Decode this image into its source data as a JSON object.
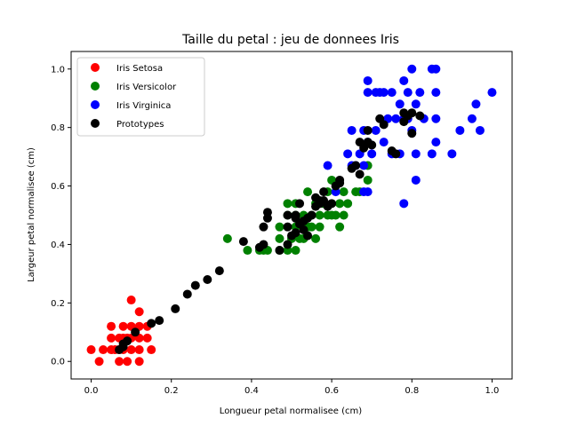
{
  "chart_data": {
    "type": "scatter",
    "title": "Taille du petal : jeu de donnees Iris",
    "xlabel": "Longueur petal  normalisee (cm)",
    "ylabel": "Largeur petal normalisee (cm)",
    "xlim": [
      -0.05,
      1.05
    ],
    "ylim": [
      -0.06,
      1.06
    ],
    "xticks": [
      "0.0",
      "0.2",
      "0.4",
      "0.6",
      "0.8",
      "1.0"
    ],
    "yticks": [
      "0.0",
      "0.2",
      "0.4",
      "0.6",
      "0.8",
      "1.0"
    ],
    "legend_position": "top-left",
    "grid": false,
    "series": [
      {
        "name": "Iris Setosa",
        "color": "#ff0000",
        "points": [
          [
            0.0,
            0.04
          ],
          [
            0.02,
            0.0
          ],
          [
            0.03,
            0.04
          ],
          [
            0.05,
            0.04
          ],
          [
            0.05,
            0.08
          ],
          [
            0.05,
            0.12
          ],
          [
            0.07,
            0.0
          ],
          [
            0.07,
            0.04
          ],
          [
            0.07,
            0.08
          ],
          [
            0.08,
            0.12
          ],
          [
            0.08,
            0.04
          ],
          [
            0.09,
            0.0
          ],
          [
            0.09,
            0.08
          ],
          [
            0.1,
            0.12
          ],
          [
            0.1,
            0.04
          ],
          [
            0.1,
            0.21
          ],
          [
            0.12,
            0.04
          ],
          [
            0.12,
            0.08
          ],
          [
            0.12,
            0.12
          ],
          [
            0.12,
            0.17
          ],
          [
            0.14,
            0.12
          ],
          [
            0.14,
            0.08
          ],
          [
            0.15,
            0.04
          ],
          [
            0.12,
            0.0
          ],
          [
            0.1,
            0.08
          ],
          [
            0.08,
            0.08
          ],
          [
            0.06,
            0.04
          ]
        ]
      },
      {
        "name": "Iris Versicolor",
        "color": "#008000",
        "points": [
          [
            0.34,
            0.42
          ],
          [
            0.39,
            0.38
          ],
          [
            0.42,
            0.38
          ],
          [
            0.43,
            0.38
          ],
          [
            0.44,
            0.38
          ],
          [
            0.47,
            0.38
          ],
          [
            0.47,
            0.42
          ],
          [
            0.49,
            0.38
          ],
          [
            0.49,
            0.5
          ],
          [
            0.49,
            0.54
          ],
          [
            0.5,
            0.42
          ],
          [
            0.51,
            0.38
          ],
          [
            0.51,
            0.46
          ],
          [
            0.51,
            0.5
          ],
          [
            0.52,
            0.42
          ],
          [
            0.53,
            0.5
          ],
          [
            0.54,
            0.46
          ],
          [
            0.54,
            0.58
          ],
          [
            0.55,
            0.5
          ],
          [
            0.56,
            0.54
          ],
          [
            0.56,
            0.42
          ],
          [
            0.57,
            0.46
          ],
          [
            0.57,
            0.5
          ],
          [
            0.58,
            0.54
          ],
          [
            0.59,
            0.5
          ],
          [
            0.59,
            0.58
          ],
          [
            0.6,
            0.5
          ],
          [
            0.6,
            0.62
          ],
          [
            0.61,
            0.5
          ],
          [
            0.62,
            0.46
          ],
          [
            0.62,
            0.54
          ],
          [
            0.63,
            0.58
          ],
          [
            0.63,
            0.5
          ],
          [
            0.64,
            0.54
          ],
          [
            0.66,
            0.58
          ],
          [
            0.67,
            0.58
          ],
          [
            0.69,
            0.62
          ],
          [
            0.69,
            0.67
          ],
          [
            0.47,
            0.46
          ],
          [
            0.51,
            0.54
          ],
          [
            0.53,
            0.42
          ],
          [
            0.55,
            0.46
          ]
        ]
      },
      {
        "name": "Iris Virginica",
        "color": "#0000ff",
        "points": [
          [
            0.59,
            0.67
          ],
          [
            0.61,
            0.58
          ],
          [
            0.64,
            0.71
          ],
          [
            0.65,
            0.67
          ],
          [
            0.65,
            0.79
          ],
          [
            0.66,
            0.67
          ],
          [
            0.67,
            0.71
          ],
          [
            0.68,
            0.79
          ],
          [
            0.68,
            0.67
          ],
          [
            0.68,
            0.58
          ],
          [
            0.69,
            0.58
          ],
          [
            0.69,
            0.75
          ],
          [
            0.69,
            0.92
          ],
          [
            0.69,
            0.96
          ],
          [
            0.7,
            0.71
          ],
          [
            0.71,
            0.92
          ],
          [
            0.71,
            0.79
          ],
          [
            0.72,
            0.92
          ],
          [
            0.73,
            0.75
          ],
          [
            0.73,
            0.92
          ],
          [
            0.74,
            0.83
          ],
          [
            0.75,
            0.92
          ],
          [
            0.75,
            0.71
          ],
          [
            0.76,
            0.83
          ],
          [
            0.77,
            0.88
          ],
          [
            0.77,
            0.71
          ],
          [
            0.78,
            0.54
          ],
          [
            0.78,
            0.96
          ],
          [
            0.78,
            0.83
          ],
          [
            0.79,
            0.92
          ],
          [
            0.79,
            0.83
          ],
          [
            0.8,
            1.0
          ],
          [
            0.8,
            0.79
          ],
          [
            0.81,
            0.88
          ],
          [
            0.81,
            0.71
          ],
          [
            0.81,
            0.62
          ],
          [
            0.82,
            0.92
          ],
          [
            0.83,
            0.83
          ],
          [
            0.85,
            1.0
          ],
          [
            0.85,
            0.71
          ],
          [
            0.86,
            0.75
          ],
          [
            0.86,
            0.92
          ],
          [
            0.86,
            1.0
          ],
          [
            0.86,
            0.83
          ],
          [
            0.9,
            0.71
          ],
          [
            0.92,
            0.79
          ],
          [
            0.95,
            0.83
          ],
          [
            0.96,
            0.88
          ],
          [
            0.97,
            0.79
          ],
          [
            1.0,
            0.92
          ]
        ]
      },
      {
        "name": "Prototypes",
        "color": "#000000",
        "points": [
          [
            0.07,
            0.04
          ],
          [
            0.08,
            0.06
          ],
          [
            0.08,
            0.05
          ],
          [
            0.09,
            0.07
          ],
          [
            0.11,
            0.1
          ],
          [
            0.15,
            0.13
          ],
          [
            0.17,
            0.14
          ],
          [
            0.21,
            0.18
          ],
          [
            0.24,
            0.23
          ],
          [
            0.26,
            0.26
          ],
          [
            0.29,
            0.28
          ],
          [
            0.32,
            0.31
          ],
          [
            0.38,
            0.41
          ],
          [
            0.42,
            0.39
          ],
          [
            0.43,
            0.4
          ],
          [
            0.43,
            0.46
          ],
          [
            0.44,
            0.49
          ],
          [
            0.44,
            0.51
          ],
          [
            0.47,
            0.38
          ],
          [
            0.49,
            0.4
          ],
          [
            0.49,
            0.46
          ],
          [
            0.49,
            0.5
          ],
          [
            0.5,
            0.43
          ],
          [
            0.51,
            0.44
          ],
          [
            0.51,
            0.49
          ],
          [
            0.51,
            0.5
          ],
          [
            0.52,
            0.47
          ],
          [
            0.52,
            0.54
          ],
          [
            0.53,
            0.45
          ],
          [
            0.53,
            0.48
          ],
          [
            0.54,
            0.43
          ],
          [
            0.54,
            0.49
          ],
          [
            0.55,
            0.5
          ],
          [
            0.56,
            0.53
          ],
          [
            0.56,
            0.56
          ],
          [
            0.57,
            0.54
          ],
          [
            0.57,
            0.55
          ],
          [
            0.58,
            0.58
          ],
          [
            0.58,
            0.55
          ],
          [
            0.59,
            0.53
          ],
          [
            0.6,
            0.54
          ],
          [
            0.61,
            0.6
          ],
          [
            0.62,
            0.61
          ],
          [
            0.62,
            0.62
          ],
          [
            0.65,
            0.66
          ],
          [
            0.66,
            0.67
          ],
          [
            0.67,
            0.64
          ],
          [
            0.67,
            0.75
          ],
          [
            0.68,
            0.73
          ],
          [
            0.69,
            0.75
          ],
          [
            0.69,
            0.79
          ],
          [
            0.7,
            0.74
          ],
          [
            0.72,
            0.83
          ],
          [
            0.73,
            0.81
          ],
          [
            0.75,
            0.72
          ],
          [
            0.76,
            0.71
          ],
          [
            0.78,
            0.82
          ],
          [
            0.78,
            0.85
          ],
          [
            0.79,
            0.84
          ],
          [
            0.8,
            0.78
          ],
          [
            0.8,
            0.85
          ],
          [
            0.82,
            0.84
          ]
        ]
      }
    ]
  }
}
